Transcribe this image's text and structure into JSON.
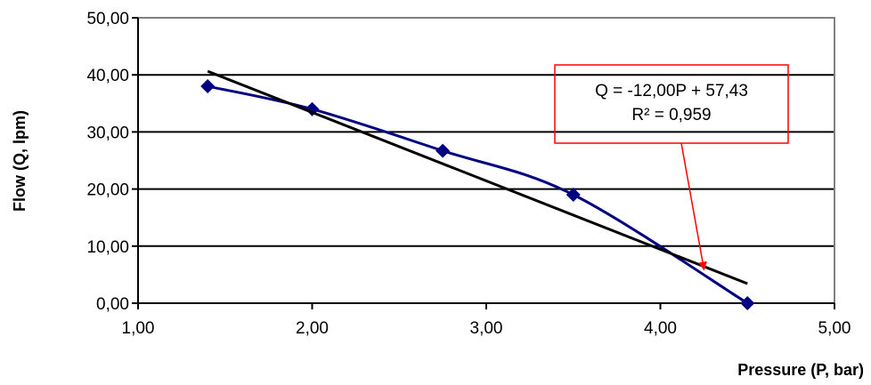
{
  "chart_data": {
    "type": "scatter",
    "xlabel": "Pressure (P, bar)",
    "ylabel": "Flow (Q, lpm)",
    "xlim": [
      1.0,
      5.0
    ],
    "ylim": [
      0.0,
      50.0
    ],
    "x_ticks": [
      "1,00",
      "2,00",
      "3,00",
      "4,00",
      "5,00"
    ],
    "y_ticks": [
      "0,00",
      "10,00",
      "20,00",
      "30,00",
      "40,00",
      "50,00"
    ],
    "grid": "horizontal",
    "series": [
      {
        "style": "smooth line with diamond markers",
        "color": "#000080",
        "x": [
          1.4,
          2.0,
          2.75,
          3.5,
          4.5
        ],
        "y": [
          38.0,
          34.0,
          26.7,
          19.0,
          0.0
        ]
      }
    ],
    "trendline": {
      "type": "linear",
      "color": "#000000",
      "slope": -12.0,
      "intercept": 57.43,
      "x_range": [
        1.4,
        4.5
      ]
    },
    "annotation": {
      "lines": [
        "Q = -12,00P + 57,43",
        "R² = 0,959"
      ],
      "box_color": "#ff0000",
      "arrow_color": "#ff0000",
      "arrow_target": {
        "x": 4.25,
        "y": 6.0
      }
    }
  }
}
